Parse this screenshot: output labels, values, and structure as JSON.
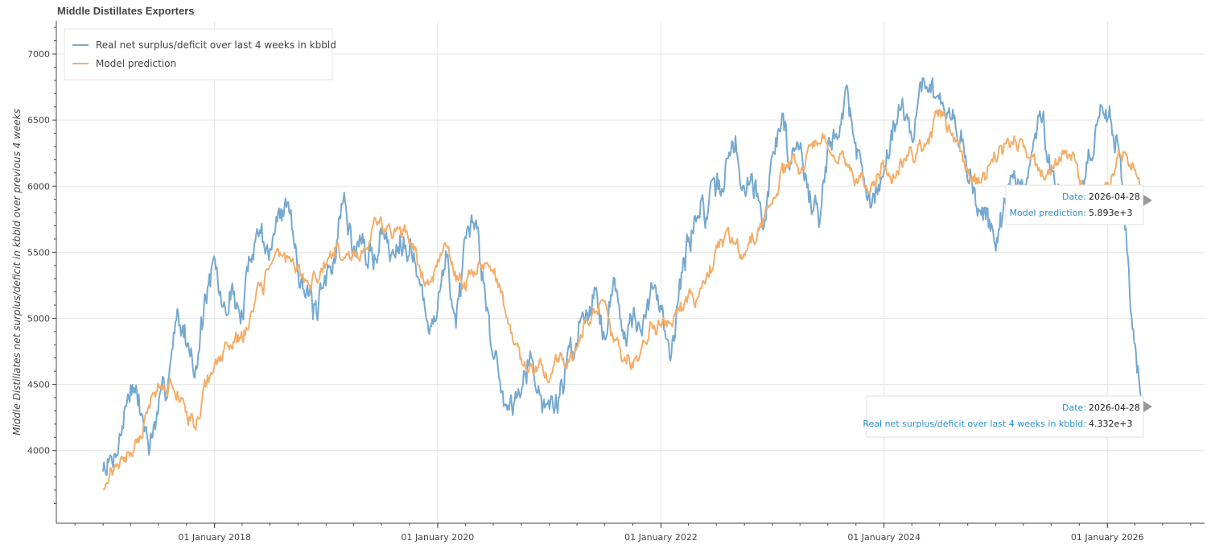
{
  "chart_data": {
    "type": "line",
    "title": "Middle Distillates Exporters",
    "xlabel": "",
    "ylabel": "Middle Distillates net surplus/deficit in kbbld over previous 4 weeks",
    "ylim": [
      3450,
      7250
    ],
    "xlim": [
      "2016-08-01",
      "2026-11-15"
    ],
    "yticks": [
      4000,
      4500,
      5000,
      5500,
      6000,
      6500,
      7000
    ],
    "xticks": [
      {
        "date": "2018-01-01",
        "label": "01 January 2018"
      },
      {
        "date": "2020-01-01",
        "label": "01 January 2020"
      },
      {
        "date": "2022-01-01",
        "label": "01 January 2022"
      },
      {
        "date": "2024-01-01",
        "label": "01 January 2024"
      },
      {
        "date": "2026-01-01",
        "label": "01 January 2026"
      }
    ],
    "grid": true,
    "legend_position": "top-left",
    "series": [
      {
        "name": "Real net surplus/deficit over last 4 weeks in kbbld",
        "color": "#76a9d0",
        "noise": 140,
        "seed": 7,
        "keypoints": [
          [
            "2017-01-01",
            3850
          ],
          [
            "2017-02-01",
            3820
          ],
          [
            "2017-03-01",
            4100
          ],
          [
            "2017-04-01",
            4480
          ],
          [
            "2017-05-01",
            4250
          ],
          [
            "2017-06-01",
            4050
          ],
          [
            "2017-07-01",
            4200
          ],
          [
            "2017-08-01",
            4550
          ],
          [
            "2017-09-01",
            5100
          ],
          [
            "2017-10-01",
            4900
          ],
          [
            "2017-11-01",
            4600
          ],
          [
            "2017-12-01",
            5100
          ],
          [
            "2018-01-01",
            5350
          ],
          [
            "2018-02-01",
            5000
          ],
          [
            "2018-03-01",
            5200
          ],
          [
            "2018-04-01",
            5050
          ],
          [
            "2018-05-01",
            5550
          ],
          [
            "2018-06-01",
            5700
          ],
          [
            "2018-07-01",
            5500
          ],
          [
            "2018-08-01",
            5800
          ],
          [
            "2018-09-01",
            5950
          ],
          [
            "2018-10-01",
            5500
          ],
          [
            "2018-11-01",
            5200
          ],
          [
            "2018-12-01",
            5000
          ],
          [
            "2019-01-01",
            5300
          ],
          [
            "2019-02-01",
            5600
          ],
          [
            "2019-03-01",
            5900
          ],
          [
            "2019-04-01",
            5500
          ],
          [
            "2019-05-01",
            5600
          ],
          [
            "2019-06-01",
            5400
          ],
          [
            "2019-07-01",
            5700
          ],
          [
            "2019-08-01",
            5500
          ],
          [
            "2019-09-01",
            5700
          ],
          [
            "2019-10-01",
            5650
          ],
          [
            "2019-11-01",
            5300
          ],
          [
            "2019-12-01",
            4900
          ],
          [
            "2020-01-01",
            5200
          ],
          [
            "2020-02-01",
            5500
          ],
          [
            "2020-03-01",
            5000
          ],
          [
            "2020-04-01",
            5400
          ],
          [
            "2020-05-01",
            5650
          ],
          [
            "2020-06-01",
            5300
          ],
          [
            "2020-07-01",
            4800
          ],
          [
            "2020-08-01",
            4400
          ],
          [
            "2020-09-01",
            4350
          ],
          [
            "2020-10-01",
            4600
          ],
          [
            "2020-11-01",
            4800
          ],
          [
            "2020-12-01",
            4400
          ],
          [
            "2021-01-01",
            4300
          ],
          [
            "2021-02-01",
            4400
          ],
          [
            "2021-03-01",
            4700
          ],
          [
            "2021-04-01",
            4850
          ],
          [
            "2021-05-01",
            5100
          ],
          [
            "2021-06-01",
            5200
          ],
          [
            "2021-07-01",
            5000
          ],
          [
            "2021-08-01",
            5300
          ],
          [
            "2021-09-01",
            4950
          ],
          [
            "2021-10-01",
            5100
          ],
          [
            "2021-11-01",
            4850
          ],
          [
            "2021-12-01",
            5150
          ],
          [
            "2022-01-01",
            5050
          ],
          [
            "2022-02-01",
            4700
          ],
          [
            "2022-03-01",
            5200
          ],
          [
            "2022-04-01",
            5650
          ],
          [
            "2022-05-01",
            5850
          ],
          [
            "2022-06-01",
            5800
          ],
          [
            "2022-07-01",
            5900
          ],
          [
            "2022-08-01",
            6150
          ],
          [
            "2022-09-01",
            6350
          ],
          [
            "2022-10-01",
            6000
          ],
          [
            "2022-11-01",
            6100
          ],
          [
            "2022-12-01",
            5800
          ],
          [
            "2023-01-01",
            6300
          ],
          [
            "2023-02-01",
            6550
          ],
          [
            "2023-03-01",
            6200
          ],
          [
            "2023-04-01",
            6400
          ],
          [
            "2023-05-01",
            5850
          ],
          [
            "2023-06-01",
            5750
          ],
          [
            "2023-07-01",
            6200
          ],
          [
            "2023-08-01",
            6500
          ],
          [
            "2023-09-01",
            6700
          ],
          [
            "2023-10-01",
            6300
          ],
          [
            "2023-11-01",
            6000
          ],
          [
            "2023-12-01",
            5800
          ],
          [
            "2024-01-01",
            6200
          ],
          [
            "2024-02-01",
            6450
          ],
          [
            "2024-03-01",
            6650
          ],
          [
            "2024-04-01",
            6500
          ],
          [
            "2024-05-01",
            6700
          ],
          [
            "2024-06-01",
            6850
          ],
          [
            "2024-07-01",
            6650
          ],
          [
            "2024-08-01",
            6500
          ],
          [
            "2024-09-01",
            6400
          ],
          [
            "2024-10-01",
            6100
          ],
          [
            "2024-11-01",
            5800
          ],
          [
            "2024-12-01",
            5850
          ],
          [
            "2025-01-01",
            5700
          ],
          [
            "2025-02-01",
            5900
          ],
          [
            "2025-03-01",
            6100
          ],
          [
            "2025-04-01",
            5950
          ],
          [
            "2025-05-01",
            6300
          ],
          [
            "2025-06-01",
            6500
          ],
          [
            "2025-07-01",
            6150
          ],
          [
            "2025-08-01",
            6000
          ],
          [
            "2025-09-01",
            5650
          ],
          [
            "2025-10-01",
            5900
          ],
          [
            "2025-11-01",
            6250
          ],
          [
            "2025-12-01",
            6400
          ],
          [
            "2026-01-01",
            6550
          ],
          [
            "2026-02-01",
            6400
          ],
          [
            "2026-03-01",
            5800
          ],
          [
            "2026-03-20",
            5000
          ],
          [
            "2026-04-10",
            4600
          ],
          [
            "2026-04-28",
            4332
          ]
        ]
      },
      {
        "name": "Model prediction",
        "color": "#f4ae6a",
        "noise": 75,
        "seed": 21,
        "keypoints": [
          [
            "2017-01-01",
            3750
          ],
          [
            "2017-02-01",
            3850
          ],
          [
            "2017-03-01",
            3950
          ],
          [
            "2017-04-01",
            4000
          ],
          [
            "2017-05-01",
            4150
          ],
          [
            "2017-06-01",
            4350
          ],
          [
            "2017-07-01",
            4550
          ],
          [
            "2017-08-01",
            4500
          ],
          [
            "2017-09-01",
            4450
          ],
          [
            "2017-10-01",
            4300
          ],
          [
            "2017-11-01",
            4200
          ],
          [
            "2017-12-01",
            4500
          ],
          [
            "2018-01-01",
            4650
          ],
          [
            "2018-02-01",
            4750
          ],
          [
            "2018-03-01",
            4800
          ],
          [
            "2018-04-01",
            4850
          ],
          [
            "2018-05-01",
            5000
          ],
          [
            "2018-06-01",
            5200
          ],
          [
            "2018-07-01",
            5350
          ],
          [
            "2018-08-01",
            5500
          ],
          [
            "2018-09-01",
            5450
          ],
          [
            "2018-10-01",
            5400
          ],
          [
            "2018-11-01",
            5350
          ],
          [
            "2018-12-01",
            5300
          ],
          [
            "2019-01-01",
            5450
          ],
          [
            "2019-02-01",
            5550
          ],
          [
            "2019-03-01",
            5500
          ],
          [
            "2019-04-01",
            5500
          ],
          [
            "2019-05-01",
            5550
          ],
          [
            "2019-06-01",
            5650
          ],
          [
            "2019-07-01",
            5700
          ],
          [
            "2019-08-01",
            5650
          ],
          [
            "2019-09-01",
            5600
          ],
          [
            "2019-10-01",
            5550
          ],
          [
            "2019-11-01",
            5350
          ],
          [
            "2019-12-01",
            5250
          ],
          [
            "2020-01-01",
            5400
          ],
          [
            "2020-02-01",
            5500
          ],
          [
            "2020-03-01",
            5300
          ],
          [
            "2020-04-01",
            5250
          ],
          [
            "2020-05-01",
            5350
          ],
          [
            "2020-06-01",
            5400
          ],
          [
            "2020-07-01",
            5300
          ],
          [
            "2020-08-01",
            5100
          ],
          [
            "2020-09-01",
            4900
          ],
          [
            "2020-10-01",
            4700
          ],
          [
            "2020-11-01",
            4600
          ],
          [
            "2020-12-01",
            4650
          ],
          [
            "2021-01-01",
            4550
          ],
          [
            "2021-02-01",
            4700
          ],
          [
            "2021-03-01",
            4750
          ],
          [
            "2021-04-01",
            4800
          ],
          [
            "2021-05-01",
            4950
          ],
          [
            "2021-06-01",
            5000
          ],
          [
            "2021-07-01",
            5050
          ],
          [
            "2021-08-01",
            4800
          ],
          [
            "2021-09-01",
            4700
          ],
          [
            "2021-10-01",
            4650
          ],
          [
            "2021-11-01",
            4800
          ],
          [
            "2021-12-01",
            4950
          ],
          [
            "2022-01-01",
            4950
          ],
          [
            "2022-02-01",
            5000
          ],
          [
            "2022-03-01",
            5050
          ],
          [
            "2022-04-01",
            5150
          ],
          [
            "2022-05-01",
            5200
          ],
          [
            "2022-06-01",
            5350
          ],
          [
            "2022-07-01",
            5500
          ],
          [
            "2022-08-01",
            5600
          ],
          [
            "2022-09-01",
            5500
          ],
          [
            "2022-10-01",
            5400
          ],
          [
            "2022-11-01",
            5600
          ],
          [
            "2022-12-01",
            5700
          ],
          [
            "2023-01-01",
            5850
          ],
          [
            "2023-02-01",
            6050
          ],
          [
            "2023-03-01",
            6150
          ],
          [
            "2023-04-01",
            6100
          ],
          [
            "2023-05-01",
            6250
          ],
          [
            "2023-06-01",
            6350
          ],
          [
            "2023-07-01",
            6300
          ],
          [
            "2023-08-01",
            6200
          ],
          [
            "2023-09-01",
            6150
          ],
          [
            "2023-10-01",
            6050
          ],
          [
            "2023-11-01",
            5950
          ],
          [
            "2023-12-01",
            6050
          ],
          [
            "2024-01-01",
            6150
          ],
          [
            "2024-02-01",
            6100
          ],
          [
            "2024-03-01",
            6200
          ],
          [
            "2024-04-01",
            6300
          ],
          [
            "2024-05-01",
            6300
          ],
          [
            "2024-06-01",
            6400
          ],
          [
            "2024-07-01",
            6550
          ],
          [
            "2024-08-01",
            6450
          ],
          [
            "2024-09-01",
            6350
          ],
          [
            "2024-10-01",
            6150
          ],
          [
            "2024-11-01",
            6050
          ],
          [
            "2024-12-01",
            6100
          ],
          [
            "2025-01-01",
            6250
          ],
          [
            "2025-02-01",
            6300
          ],
          [
            "2025-03-01",
            6350
          ],
          [
            "2025-04-01",
            6250
          ],
          [
            "2025-05-01",
            6150
          ],
          [
            "2025-06-01",
            6050
          ],
          [
            "2025-07-01",
            6100
          ],
          [
            "2025-08-01",
            6200
          ],
          [
            "2025-09-01",
            6250
          ],
          [
            "2025-10-01",
            6100
          ],
          [
            "2025-11-01",
            5950
          ],
          [
            "2025-12-01",
            5850
          ],
          [
            "2026-01-01",
            6050
          ],
          [
            "2026-02-01",
            6200
          ],
          [
            "2026-03-01",
            6250
          ],
          [
            "2026-04-01",
            6150
          ],
          [
            "2026-04-28",
            5893
          ]
        ]
      }
    ],
    "tooltips": [
      {
        "series_index": 1,
        "date_key": "Date:",
        "date_value": "2026-04-28",
        "value_key": "Model prediction:",
        "value_text": "5.893e+3",
        "anchor_date": "2026-04-28",
        "anchor_value": 5893
      },
      {
        "series_index": 0,
        "date_key": "Date:",
        "date_value": "2026-04-28",
        "value_key": "Real net surplus/deficit over last 4 weeks in kbbld:",
        "value_text": "4.332e+3",
        "anchor_date": "2026-04-28",
        "anchor_value": 4332
      }
    ]
  }
}
